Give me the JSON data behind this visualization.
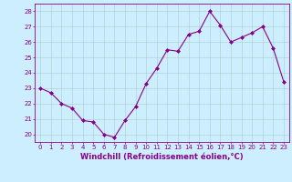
{
  "x": [
    0,
    1,
    2,
    3,
    4,
    5,
    6,
    7,
    8,
    9,
    10,
    11,
    12,
    13,
    14,
    15,
    16,
    17,
    18,
    19,
    20,
    21,
    22,
    23
  ],
  "y": [
    23.0,
    22.7,
    22.0,
    21.7,
    20.9,
    20.8,
    20.0,
    19.8,
    20.9,
    21.8,
    23.3,
    24.3,
    25.5,
    25.4,
    26.5,
    26.7,
    28.0,
    27.1,
    26.0,
    26.3,
    26.6,
    27.0,
    25.6,
    23.4
  ],
  "line_color": "#880088",
  "marker": "D",
  "marker_size": 2.0,
  "bg_color": "#cceeff",
  "grid_color": "#aacccc",
  "xlabel": "Windchill (Refroidissement éolien,°C)",
  "ylim": [
    19.5,
    28.5
  ],
  "yticks": [
    20,
    21,
    22,
    23,
    24,
    25,
    26,
    27,
    28
  ],
  "xticks": [
    0,
    1,
    2,
    3,
    4,
    5,
    6,
    7,
    8,
    9,
    10,
    11,
    12,
    13,
    14,
    15,
    16,
    17,
    18,
    19,
    20,
    21,
    22,
    23
  ],
  "font_color": "#880088",
  "tick_fontsize": 5.0,
  "xlabel_fontsize": 6.0,
  "linewidth": 0.8
}
